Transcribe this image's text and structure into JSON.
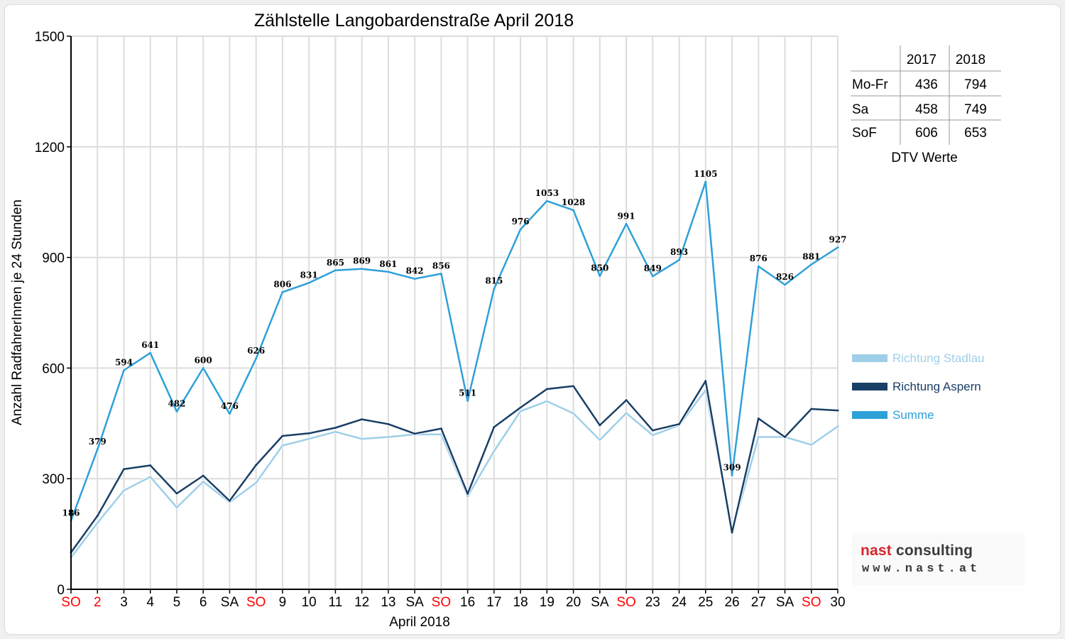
{
  "chart_data": {
    "type": "line",
    "title": "Zählstelle Langobardenstraße April 2018",
    "xlabel": "April 2018",
    "ylabel": "Anzahl RadfahrerInnen je 24 Stunden",
    "ylim": [
      0,
      1500
    ],
    "yticks": [
      "0",
      "300",
      "600",
      "900",
      "1200",
      "1500"
    ],
    "grid": true,
    "legend_position": "right",
    "categories": [
      "SO",
      "2",
      "3",
      "4",
      "5",
      "6",
      "SA",
      "SO",
      "9",
      "10",
      "11",
      "12",
      "13",
      "SA",
      "SO",
      "16",
      "17",
      "18",
      "19",
      "20",
      "SA",
      "SO",
      "23",
      "24",
      "25",
      "26",
      "27",
      "SA",
      "SO",
      "30"
    ],
    "category_colors": [
      "#ff0000",
      "#ff0000",
      "#000000",
      "#000000",
      "#000000",
      "#000000",
      "#000000",
      "#ff0000",
      "#000000",
      "#000000",
      "#000000",
      "#000000",
      "#000000",
      "#000000",
      "#ff0000",
      "#000000",
      "#000000",
      "#000000",
      "#000000",
      "#000000",
      "#000000",
      "#ff0000",
      "#000000",
      "#000000",
      "#000000",
      "#000000",
      "#000000",
      "#000000",
      "#ff0000",
      "#000000"
    ],
    "series": [
      {
        "name": "Richtung Stadlau",
        "color": "#9fcfe8",
        "values": [
          86,
          180,
          268,
          305,
          222,
          292,
          236,
          289,
          390,
          408,
          427,
          408,
          413,
          420,
          420,
          252,
          375,
          483,
          510,
          477,
          405,
          478,
          418,
          445,
          540,
          155,
          413,
          413,
          392,
          442
        ]
      },
      {
        "name": "Richtung Aspern",
        "color": "#1a3f66",
        "values": [
          100,
          199,
          326,
          336,
          260,
          308,
          240,
          337,
          416,
          423,
          438,
          461,
          448,
          422,
          436,
          259,
          440,
          493,
          543,
          551,
          445,
          513,
          431,
          448,
          565,
          154,
          463,
          413,
          489,
          485
        ]
      },
      {
        "name": "Summe",
        "color": "#2ea0d8",
        "values": [
          186,
          379,
          594,
          641,
          482,
          600,
          476,
          626,
          806,
          831,
          865,
          869,
          861,
          842,
          856,
          511,
          815,
          976,
          1053,
          1028,
          850,
          991,
          849,
          893,
          1105,
          309,
          876,
          826,
          881,
          927
        ]
      }
    ],
    "data_labels": [
      "186",
      "379",
      "594",
      "641",
      "482",
      "600",
      "476",
      "626",
      "806",
      "831",
      "865",
      "869",
      "861",
      "842",
      "856",
      "511",
      "815",
      "976",
      "1053",
      "1028",
      "850",
      "991",
      "849",
      "893",
      "1105",
      "309",
      "876",
      "826",
      "881",
      "927"
    ]
  },
  "dtv_table": {
    "headers": [
      "2017",
      "2018"
    ],
    "rows": [
      {
        "label": "Mo-Fr",
        "v2017": "436",
        "v2018": "794"
      },
      {
        "label": "Sa",
        "v2017": "458",
        "v2018": "749"
      },
      {
        "label": "SoF",
        "v2017": "606",
        "v2018": "653"
      }
    ],
    "caption": "DTV Werte"
  },
  "logo": {
    "line1_part1": "nast",
    "line1_part2": " consulting",
    "line2": "www.nast.at"
  }
}
